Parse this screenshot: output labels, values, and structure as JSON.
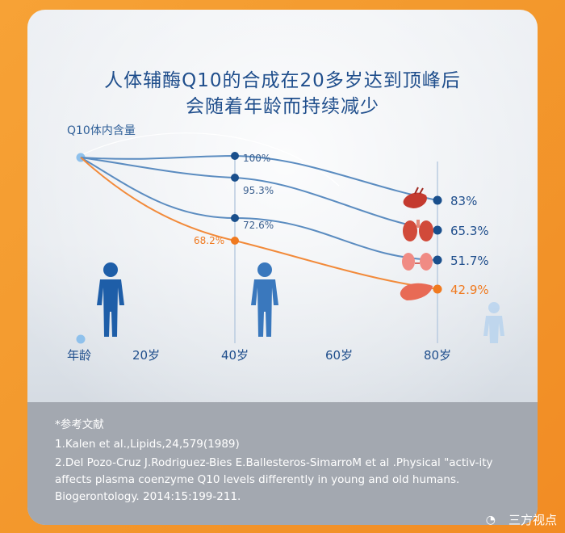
{
  "title_line1": "人体辅酶Q10的合成在20多岁达到顶峰后",
  "title_line2": "会随着年龄而持续减少",
  "chart_data": {
    "type": "line",
    "ylabel": "Q10体内含量",
    "xlabel": "年龄",
    "x_ticks": [
      "20岁",
      "40岁",
      "60岁",
      "80岁"
    ],
    "x": [
      20,
      40,
      80
    ],
    "series": [
      {
        "color": "#2a6bb0",
        "points": [
          {
            "x": 20,
            "y": 100,
            "label": "100%"
          },
          {
            "x": 80,
            "y": 83,
            "label": "83%"
          }
        ]
      },
      {
        "color": "#2a6bb0",
        "points": [
          {
            "x": 20,
            "y": 95.3,
            "label": "95.3%"
          },
          {
            "x": 80,
            "y": 65.3,
            "label": "65.3%"
          }
        ]
      },
      {
        "color": "#2a6bb0",
        "points": [
          {
            "x": 20,
            "y": 72.6,
            "label": "72.6%"
          },
          {
            "x": 80,
            "y": 51.7,
            "label": "51.7%"
          }
        ]
      },
      {
        "color": "#f07a20",
        "points": [
          {
            "x": 20,
            "y": 68.2,
            "label": "68.2%"
          },
          {
            "x": 80,
            "y": 42.9,
            "label": "42.9%"
          }
        ]
      }
    ],
    "organ_icons": [
      "heart-icon",
      "lung-icon",
      "kidney-icon",
      "liver-icon"
    ]
  },
  "references": {
    "heading": "*参考文献",
    "ref1": "1.Kalen et al.,Lipids,24,579(1989)",
    "ref2_line1": "2.Del Pozo-Cruz J.Rodriguez-Bies E.Ballesteros-SimarroM et al .Physical \"activ-ity",
    "ref2_line2": "affects plasma coenzyme Q10 levels differently in young and old humans.",
    "ref2_line3": "Biogerontology. 2014:15:199-211."
  },
  "watermark": "三方视点",
  "colors": {
    "blue": "#1f5a9e",
    "orange": "#f07a20",
    "title": "#1f4e8c"
  }
}
